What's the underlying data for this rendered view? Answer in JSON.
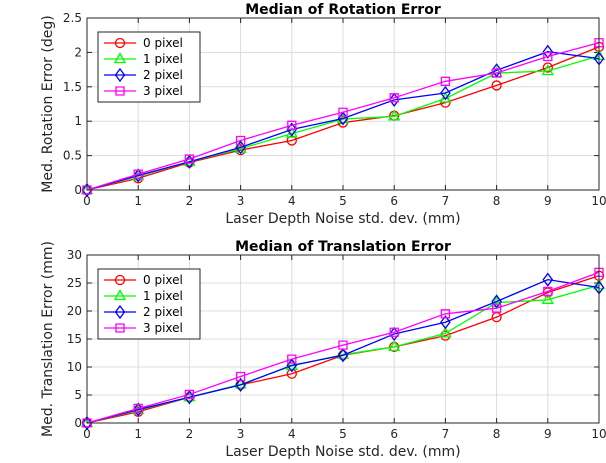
{
  "chart_data": [
    {
      "type": "line",
      "title": "Median of Rotation Error",
      "xlabel": "Laser Depth Noise std. dev. (mm)",
      "ylabel": "Med. Rotation Error (deg)",
      "x": [
        0,
        1,
        2,
        3,
        4,
        5,
        6,
        7,
        8,
        9,
        10
      ],
      "xlim": [
        0,
        10
      ],
      "ylim": [
        0,
        2.5
      ],
      "xticks": [
        "0",
        "1",
        "2",
        "3",
        "4",
        "5",
        "6",
        "7",
        "8",
        "9",
        "10"
      ],
      "yticks": [
        "0",
        "0.5",
        "1",
        "1.5",
        "2",
        "2.5"
      ],
      "grid": true,
      "legend_position": "top-left",
      "series": [
        {
          "name": "0 pixel",
          "color": "#ff0000",
          "marker": "circle",
          "values": [
            0.0,
            0.17,
            0.4,
            0.58,
            0.72,
            0.98,
            1.08,
            1.27,
            1.52,
            1.78,
            2.08
          ]
        },
        {
          "name": "1 pixel",
          "color": "#00ff00",
          "marker": "triangle",
          "values": [
            0.0,
            0.2,
            0.41,
            0.6,
            0.82,
            1.03,
            1.07,
            1.33,
            1.7,
            1.73,
            1.95
          ]
        },
        {
          "name": "2 pixel",
          "color": "#0000ff",
          "marker": "diamond",
          "values": [
            0.0,
            0.21,
            0.41,
            0.62,
            0.88,
            1.04,
            1.31,
            1.41,
            1.74,
            2.01,
            1.91
          ]
        },
        {
          "name": "3 pixel",
          "color": "#ff00ff",
          "marker": "square",
          "values": [
            0.0,
            0.23,
            0.45,
            0.72,
            0.94,
            1.13,
            1.34,
            1.58,
            1.7,
            1.94,
            2.14
          ]
        }
      ]
    },
    {
      "type": "line",
      "title": "Median of Translation Error",
      "xlabel": "Laser Depth Noise std. dev. (mm)",
      "ylabel": "Med. Translation Error (mm)",
      "x": [
        0,
        1,
        2,
        3,
        4,
        5,
        6,
        7,
        8,
        9,
        10
      ],
      "xlim": [
        0,
        10
      ],
      "ylim": [
        0,
        30
      ],
      "xticks": [
        "0",
        "1",
        "2",
        "3",
        "4",
        "5",
        "6",
        "7",
        "8",
        "9",
        "10"
      ],
      "yticks": [
        "0",
        "5",
        "10",
        "15",
        "20",
        "25",
        "30"
      ],
      "grid": true,
      "legend_position": "top-left",
      "series": [
        {
          "name": "0 pixel",
          "color": "#ff0000",
          "marker": "circle",
          "values": [
            0.0,
            2.0,
            4.6,
            6.8,
            8.8,
            12.1,
            13.6,
            15.6,
            18.9,
            23.3,
            26.3
          ]
        },
        {
          "name": "1 pixel",
          "color": "#00ff00",
          "marker": "triangle",
          "values": [
            0.0,
            2.3,
            4.6,
            6.9,
            10.2,
            12.2,
            13.6,
            16.0,
            21.5,
            22.0,
            24.6
          ]
        },
        {
          "name": "2 pixel",
          "color": "#0000ff",
          "marker": "diamond",
          "values": [
            0.0,
            2.4,
            4.6,
            6.8,
            10.3,
            12.1,
            15.9,
            18.0,
            21.7,
            25.6,
            24.2
          ]
        },
        {
          "name": "3 pixel",
          "color": "#ff00ff",
          "marker": "square",
          "values": [
            0.0,
            2.6,
            5.1,
            8.3,
            11.4,
            13.9,
            16.2,
            19.5,
            20.5,
            23.5,
            26.9
          ]
        }
      ]
    }
  ]
}
